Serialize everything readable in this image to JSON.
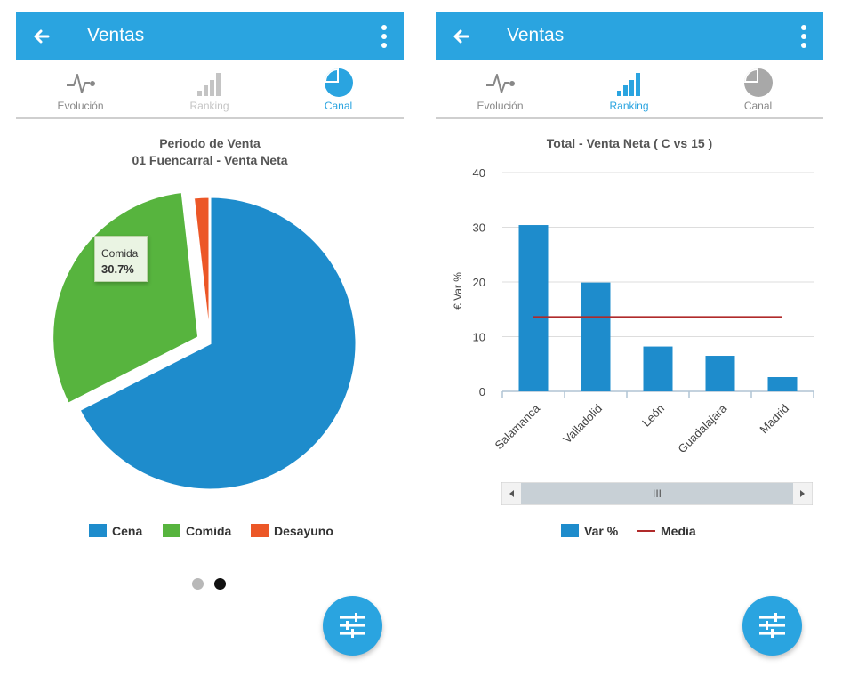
{
  "screens": [
    {
      "app_bar": {
        "title": "Ventas"
      },
      "tabs": [
        {
          "label": "Evolución",
          "icon": "pulse-icon",
          "state": "inactive"
        },
        {
          "label": "Ranking",
          "icon": "signal-bars-icon",
          "state": "disabled"
        },
        {
          "label": "Canal",
          "icon": "pie-chart-icon",
          "state": "active"
        }
      ],
      "chart_title_line1": "Periodo de Venta",
      "chart_title_line2": "01 Fuencarral - Venta Neta",
      "tooltip": {
        "name": "Comida",
        "value": "30.7%"
      },
      "legend": [
        "Cena",
        "Comida",
        "Desayuno"
      ],
      "pager": {
        "pages": 2,
        "current": 2
      }
    },
    {
      "app_bar": {
        "title": "Ventas"
      },
      "tabs": [
        {
          "label": "Evolución",
          "icon": "pulse-icon",
          "state": "inactive"
        },
        {
          "label": "Ranking",
          "icon": "signal-bars-icon",
          "state": "active"
        },
        {
          "label": "Canal",
          "icon": "pie-chart-icon",
          "state": "inactive"
        }
      ],
      "chart_title": "Total - Venta Neta ( C vs 15 )",
      "scrollbar": {
        "thumb_grip": "III"
      },
      "legend": [
        "Var %",
        "Media"
      ]
    }
  ],
  "colors": {
    "primary": "#2aa4e0",
    "cena": "#1e8ccc",
    "comida": "#57b43e",
    "desayuno": "#ec5727",
    "bar": "#1e8ccc",
    "media_line": "#b02a2a",
    "tab_inactive": "#888888",
    "tab_disabled": "#c4c4c4"
  },
  "chart_data": [
    {
      "type": "pie",
      "title": "Periodo de Venta",
      "subtitle": "01 Fuencarral - Venta Neta",
      "slices": [
        {
          "name": "Cena",
          "value": 67.5
        },
        {
          "name": "Comida",
          "value": 30.7
        },
        {
          "name": "Desayuno",
          "value": 1.8
        }
      ],
      "selected": "Comida",
      "legend_position": "bottom"
    },
    {
      "type": "bar",
      "title": "Total - Venta Neta ( C vs 15 )",
      "categories": [
        "Salamanca",
        "Valladolid",
        "León",
        "Guadalajara",
        "Madrid"
      ],
      "series": [
        {
          "name": "Var %",
          "type": "bar",
          "values": [
            30.4,
            19.9,
            8.2,
            6.5,
            2.6
          ]
        },
        {
          "name": "Media",
          "type": "line",
          "values": [
            13.6,
            13.6,
            13.6,
            13.6,
            13.6
          ]
        }
      ],
      "ylabel": "€ Var %",
      "ylim": [
        0,
        40
      ],
      "yticks": [
        0,
        10,
        20,
        30,
        40
      ],
      "grid": true,
      "legend_position": "bottom"
    }
  ]
}
